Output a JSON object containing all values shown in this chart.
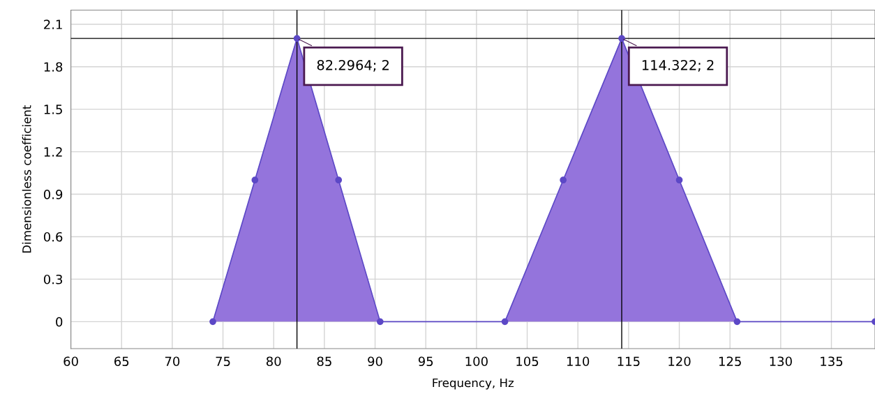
{
  "chart_data": {
    "type": "area",
    "xlabel": "Frequency, Hz",
    "ylabel": "Dimensionless coefficient",
    "series": [
      {
        "color": "#9474dc",
        "x": [
          74.0,
          78.15,
          82.2964,
          86.4,
          90.5,
          102.8,
          108.55,
          114.322,
          120.0,
          125.7,
          139.3
        ],
        "values": [
          0,
          1,
          2,
          1,
          0,
          0,
          1,
          2,
          1,
          0,
          0
        ]
      }
    ],
    "marker": "circle",
    "xlim": [
      60,
      139.3
    ],
    "xticks": [
      60,
      65,
      70,
      75,
      80,
      85,
      90,
      95,
      100,
      105,
      110,
      115,
      120,
      125,
      130,
      135
    ],
    "ylim": [
      -0.19,
      2.2
    ],
    "yticks": [
      0,
      0.3,
      0.6,
      0.9,
      1.2,
      1.5,
      1.8,
      2.1
    ],
    "grid": true,
    "ref_lines": [
      {
        "axis": "x",
        "value": 82.2964,
        "color": "#000000"
      },
      {
        "axis": "x",
        "value": 114.322,
        "color": "#000000"
      },
      {
        "axis": "y",
        "value": 2,
        "color": "#000000"
      }
    ],
    "annotations": [
      {
        "text": "82.2964; 2",
        "x": 82.2964,
        "y": 2
      },
      {
        "text": "114.322; 2",
        "x": 114.322,
        "y": 2
      }
    ]
  }
}
